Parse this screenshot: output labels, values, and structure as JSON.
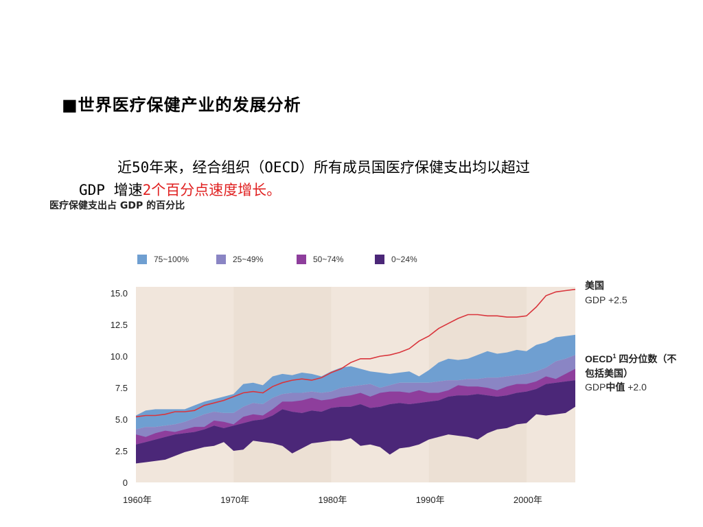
{
  "slide": {
    "title": "■世界医疗保健产业的发展分析",
    "body_line1": "近50年来，经合组织（OECD）所有成员国医疗保健支出均以超过",
    "body_line2_prefix": "GDP 增速",
    "body_line2_highlight": "2个百分点速度增长。"
  },
  "chart_data": {
    "type": "area",
    "title": "医疗保健支出占 GDP 的百分比",
    "xlabel": "",
    "ylabel": "",
    "x": [
      1960,
      1961,
      1962,
      1963,
      1964,
      1965,
      1966,
      1967,
      1968,
      1969,
      1970,
      1971,
      1972,
      1973,
      1974,
      1975,
      1976,
      1977,
      1978,
      1979,
      1980,
      1981,
      1982,
      1983,
      1984,
      1985,
      1986,
      1987,
      1988,
      1989,
      1990,
      1991,
      1992,
      1993,
      1994,
      1995,
      1996,
      1997,
      1998,
      1999,
      2000,
      2001,
      2002,
      2003,
      2004,
      2005
    ],
    "xticks": [
      1960,
      1970,
      1980,
      1990,
      2000
    ],
    "xtick_labels": [
      "1960年",
      "1970年",
      "1980年",
      "1990年",
      "2000年"
    ],
    "yticks": [
      0,
      2.5,
      5.0,
      7.5,
      10.0,
      12.5,
      15.0
    ],
    "ytick_labels": [
      "0",
      "2.5",
      "5.0",
      "7.5",
      "10.0",
      "12.5",
      "15.0"
    ],
    "ylim": [
      0,
      15.5
    ],
    "xlim": [
      1960,
      2005
    ],
    "legend_position": "top",
    "bands": [
      {
        "name": "75~100%",
        "color": "#6f9fd1",
        "lower": [
          4.2,
          4.4,
          4.4,
          4.5,
          4.6,
          4.8,
          5.1,
          5.4,
          5.6,
          5.5,
          5.5,
          6.0,
          6.3,
          6.2,
          6.7,
          7.0,
          7.1,
          7.1,
          7.2,
          7.1,
          7.2,
          7.5,
          7.6,
          7.7,
          7.8,
          7.5,
          7.7,
          7.9,
          7.9,
          7.9,
          7.9,
          8.0,
          8.1,
          8.1,
          8.2,
          8.2,
          8.3,
          8.3,
          8.4,
          8.5,
          8.6,
          8.8,
          9.1,
          9.6,
          9.8,
          10.1
        ],
        "upper": [
          5.3,
          5.7,
          5.8,
          5.8,
          5.8,
          5.8,
          6.1,
          6.4,
          6.6,
          6.8,
          7.0,
          7.8,
          7.9,
          7.7,
          8.4,
          8.6,
          8.5,
          8.7,
          8.6,
          8.4,
          8.8,
          9.1,
          9.2,
          9.0,
          8.8,
          8.7,
          8.6,
          8.7,
          8.8,
          8.4,
          8.9,
          9.5,
          9.8,
          9.7,
          9.8,
          10.1,
          10.4,
          10.2,
          10.3,
          10.5,
          10.4,
          10.9,
          11.1,
          11.5,
          11.6,
          11.7
        ]
      },
      {
        "name": "25~49%",
        "color": "#8a85c4",
        "lower": [
          3.0,
          3.2,
          3.4,
          3.6,
          3.8,
          3.9,
          4.0,
          4.2,
          4.5,
          4.3,
          4.5,
          4.7,
          4.9,
          5.0,
          5.3,
          5.8,
          5.6,
          5.5,
          5.7,
          5.6,
          5.9,
          6.0,
          6.0,
          6.2,
          5.9,
          6.0,
          6.2,
          6.3,
          6.2,
          6.3,
          6.4,
          6.5,
          6.8,
          6.9,
          6.9,
          7.0,
          6.9,
          6.8,
          6.9,
          7.1,
          7.2,
          7.4,
          7.8,
          7.9,
          8.0,
          8.1
        ],
        "upper": [
          4.2,
          4.4,
          4.4,
          4.5,
          4.6,
          4.8,
          5.1,
          5.4,
          5.6,
          5.5,
          5.5,
          6.0,
          6.3,
          6.2,
          6.7,
          7.0,
          7.1,
          7.1,
          7.2,
          7.1,
          7.2,
          7.5,
          7.6,
          7.7,
          7.8,
          7.5,
          7.7,
          7.9,
          7.9,
          7.9,
          7.9,
          8.0,
          8.1,
          8.1,
          8.2,
          8.2,
          8.3,
          8.3,
          8.4,
          8.5,
          8.6,
          8.8,
          9.1,
          9.6,
          9.8,
          10.1
        ]
      },
      {
        "name": "50~74%",
        "color": "#8e3e9c",
        "lower": [
          3.0,
          3.2,
          3.4,
          3.6,
          3.8,
          3.9,
          4.0,
          4.2,
          4.5,
          4.3,
          4.5,
          4.7,
          4.9,
          5.0,
          5.3,
          5.8,
          5.6,
          5.5,
          5.7,
          5.6,
          5.9,
          6.0,
          6.0,
          6.2,
          5.9,
          6.0,
          6.2,
          6.3,
          6.2,
          6.3,
          6.4,
          6.5,
          6.8,
          6.9,
          6.9,
          7.0,
          6.9,
          6.8,
          6.9,
          7.1,
          7.2,
          7.4,
          7.8,
          7.9,
          8.0,
          8.1
        ],
        "upper": [
          3.8,
          3.6,
          3.9,
          4.1,
          4.0,
          4.2,
          4.4,
          4.4,
          4.9,
          4.8,
          4.6,
          5.2,
          5.4,
          5.3,
          5.8,
          6.4,
          6.4,
          6.5,
          6.7,
          6.5,
          6.6,
          6.8,
          6.9,
          7.1,
          6.8,
          7.1,
          7.2,
          7.2,
          7.1,
          7.3,
          7.1,
          7.1,
          7.3,
          7.7,
          7.6,
          7.6,
          7.5,
          7.3,
          7.6,
          7.8,
          7.8,
          8.0,
          8.4,
          8.2,
          8.6,
          9.0
        ]
      },
      {
        "name": "0~24%",
        "color": "#4b2778",
        "lower": [
          1.5,
          1.6,
          1.7,
          1.8,
          2.1,
          2.4,
          2.6,
          2.8,
          2.9,
          3.2,
          2.5,
          2.6,
          3.3,
          3.2,
          3.1,
          2.9,
          2.3,
          2.7,
          3.1,
          3.2,
          3.3,
          3.3,
          3.5,
          2.9,
          3.0,
          2.8,
          2.2,
          2.7,
          2.8,
          3.0,
          3.4,
          3.6,
          3.8,
          3.7,
          3.6,
          3.4,
          3.9,
          4.2,
          4.3,
          4.6,
          4.7,
          5.4,
          5.3,
          5.4,
          5.5,
          6.0
        ],
        "upper": [
          3.0,
          3.2,
          3.4,
          3.6,
          3.8,
          3.9,
          4.0,
          4.2,
          4.5,
          4.3,
          4.5,
          4.7,
          4.9,
          5.0,
          5.3,
          5.8,
          5.6,
          5.5,
          5.7,
          5.6,
          5.9,
          6.0,
          6.0,
          6.2,
          5.9,
          6.0,
          6.2,
          6.3,
          6.2,
          6.3,
          6.4,
          6.5,
          6.8,
          6.9,
          6.9,
          7.0,
          6.9,
          6.8,
          6.9,
          7.1,
          7.2,
          7.4,
          7.8,
          7.9,
          8.0,
          8.1
        ]
      }
    ],
    "legend_order": [
      "75~100%",
      "25~49%",
      "50~74%",
      "0~24%"
    ],
    "line": {
      "name": "美国",
      "color": "#d9343b",
      "values": [
        5.2,
        5.3,
        5.3,
        5.4,
        5.6,
        5.6,
        5.7,
        6.1,
        6.3,
        6.5,
        6.8,
        7.1,
        7.2,
        7.1,
        7.6,
        7.9,
        8.1,
        8.2,
        8.1,
        8.3,
        8.7,
        9.0,
        9.5,
        9.8,
        9.8,
        10.0,
        10.1,
        10.3,
        10.6,
        11.2,
        11.6,
        12.2,
        12.6,
        13.0,
        13.3,
        13.3,
        13.2,
        13.2,
        13.1,
        13.1,
        13.2,
        13.9,
        14.8,
        15.1,
        15.2,
        15.3
      ]
    },
    "annotations": {
      "us_label": "美国",
      "us_growth": "GDP +2.5",
      "oecd_label": "OECD",
      "oecd_sup": "1",
      "oecd_label_rest": " 四分位数（不",
      "oecd_label_line2": "包括美国）",
      "oecd_median_prefix": "GDP",
      "oecd_median_mid": "中值",
      "oecd_median_value": " +2.0"
    },
    "colors": {
      "plot_bg": "#f1e6dc",
      "plot_bg_alt": "#ece0d4",
      "axis_text": "#222222"
    }
  }
}
